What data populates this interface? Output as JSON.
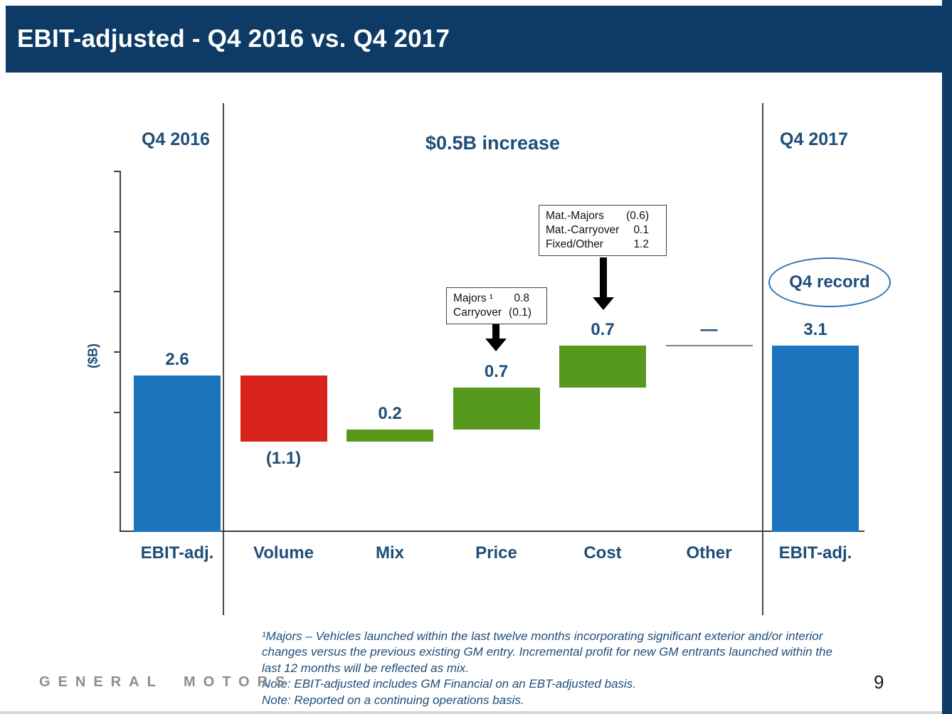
{
  "slide": {
    "title": "EBIT-adjusted - Q4 2016 vs. Q4 2017",
    "brand": "GENERAL MOTORS",
    "page_number": "9",
    "colors": {
      "header_bg": "#0d3b66",
      "text_blue": "#1f4e79"
    }
  },
  "chart": {
    "left_header": "Q4 2016",
    "center_header": "$0.5B increase",
    "right_header": "Q4 2017",
    "y_axis_label": "($B)",
    "record_badge": "Q4 record"
  },
  "chart_data": {
    "type": "bar",
    "subtype": "waterfall",
    "title": "EBIT-adjusted - Q4 2016 vs. Q4 2017",
    "categories": [
      "EBIT-adj.",
      "Volume",
      "Mix",
      "Price",
      "Cost",
      "Other",
      "EBIT-adj."
    ],
    "values": [
      2.6,
      -1.1,
      0.2,
      0.7,
      0.7,
      0,
      3.1
    ],
    "value_labels": [
      "2.6",
      "(1.1)",
      "0.2",
      "0.7",
      "0.7",
      "—",
      "3.1"
    ],
    "kinds": [
      "total",
      "delta",
      "delta",
      "delta",
      "delta",
      "connector",
      "total"
    ],
    "ylabel": "($B)",
    "ylim": [
      0,
      6
    ],
    "grid": false,
    "legend": false,
    "colors": {
      "total": "#1b74bc",
      "increase": "#57991d",
      "decrease": "#d8241c",
      "connector": "#808080"
    },
    "annotations": {
      "start_column": "Q4 2016",
      "delta_summary": "$0.5B increase",
      "end_column": "Q4 2017",
      "record_label": "Q4 record"
    }
  },
  "callouts": [
    {
      "target": "Price",
      "rows": [
        {
          "label": "Majors ¹",
          "value": "0.8"
        },
        {
          "label": "Carryover",
          "value": "(0.1)"
        }
      ]
    },
    {
      "target": "Cost",
      "rows": [
        {
          "label": "Mat.-Majors",
          "value": "(0.6)"
        },
        {
          "label": "Mat.-Carryover",
          "value": "0.1"
        },
        {
          "label": "Fixed/Other",
          "value": "1.2"
        }
      ]
    }
  ],
  "footnotes": [
    "¹Majors – Vehicles launched within the last twelve months incorporating significant exterior and/or interior changes versus the previous existing GM entry. Incremental profit for new GM entrants launched within the last 12 months will be reflected as mix.",
    "Note: EBIT-adjusted includes GM Financial on an EBT-adjusted basis.",
    "Note: Reported on a continuing operations basis."
  ]
}
